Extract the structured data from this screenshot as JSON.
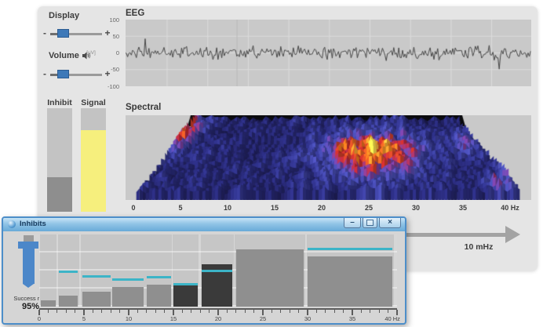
{
  "app": {
    "display": {
      "label": "Display",
      "minus": "-",
      "plus": "+",
      "handle_pos_pct": 18
    },
    "volume": {
      "label": "Volume",
      "minus": "-",
      "plus": "+",
      "handle_pos_pct": 18
    },
    "meters": {
      "inhibit_label": "Inhibit",
      "inhibit_fill_pct": 33,
      "signal_label": "Signal",
      "signal_fill_pct": 79
    },
    "eeg": {
      "title": "EEG",
      "unit": "[uV]"
    },
    "spectral": {
      "title": "Spectral"
    },
    "sweep": {
      "label": "10 mHz"
    }
  },
  "inhibits_window": {
    "title": "Inhibits",
    "minimize_glyph": "–",
    "close_glyph": "×",
    "success_label": "Success rate",
    "success_value": "95%"
  },
  "colors": {
    "threshold": "#3cb4c7",
    "bar": "#8f8f8f",
    "bar_active": "#3a3a3a",
    "signal_fill": "#f6ef7d",
    "inhibit_fill": "#8e8e8e",
    "slider_handle": "#3e79b8",
    "success_plunger": "#4c87c9",
    "window_chrome": "#4d8ec9"
  },
  "chart_data": [
    {
      "type": "bar",
      "title": "Inhibits",
      "xlabel": "Hz",
      "x_range": [
        0,
        40
      ],
      "x_major_ticks": [
        0,
        5,
        10,
        15,
        20,
        25,
        30,
        35,
        40
      ],
      "x_tick_labels": [
        "0",
        "5",
        "10",
        "15",
        "20",
        "25",
        "30",
        "35",
        "40 Hz"
      ],
      "minor_tick_step_hz": 1,
      "bars": [
        {
          "from_hz": 0.2,
          "to_hz": 1.8,
          "height_pct": 9,
          "threshold_pct": null,
          "state": "normal"
        },
        {
          "from_hz": 2.2,
          "to_hz": 4.3,
          "height_pct": 15,
          "threshold_pct": 48,
          "state": "normal"
        },
        {
          "from_hz": 4.8,
          "to_hz": 8.0,
          "height_pct": 21,
          "threshold_pct": 42,
          "state": "normal"
        },
        {
          "from_hz": 8.2,
          "to_hz": 11.7,
          "height_pct": 27,
          "threshold_pct": 38,
          "state": "normal"
        },
        {
          "from_hz": 12.0,
          "to_hz": 14.7,
          "height_pct": 30,
          "threshold_pct": 41,
          "state": "normal"
        },
        {
          "from_hz": 15.0,
          "to_hz": 17.7,
          "height_pct": 30,
          "threshold_pct": 31,
          "state": "active"
        },
        {
          "from_hz": 18.2,
          "to_hz": 21.6,
          "height_pct": 59,
          "threshold_pct": 49,
          "state": "active"
        },
        {
          "from_hz": 22.0,
          "to_hz": 29.6,
          "height_pct": 79,
          "threshold_pct": null,
          "state": "normal"
        },
        {
          "from_hz": 30.0,
          "to_hz": 39.5,
          "height_pct": 70,
          "threshold_pct": 80,
          "state": "normal"
        }
      ]
    },
    {
      "type": "line",
      "title": "EEG",
      "ylabel": "[uV]",
      "ylim": [
        -100,
        100
      ],
      "y_tick_labels": [
        "100",
        "50",
        "0",
        "-50",
        "-100"
      ],
      "grid": true,
      "description": "Continuous raw EEG noise trace oscillating around 0 uV, mostly within ±25 uV with occasional ±50 uV spikes; vertical cursor line near 28% of sweep."
    },
    {
      "type": "heatmap",
      "title": "Spectral",
      "xlabel": "Hz",
      "x_range": [
        0,
        40
      ],
      "x_tick_labels": [
        "0",
        "5",
        "10",
        "15",
        "20",
        "25",
        "30",
        "35",
        "40 Hz"
      ],
      "description": "3D spectral surface (waterfall) in perspective: mostly blue/indigo terrain, hot red-orange-yellow peak cluster around 20-27 Hz, a red ridge along the far-left edge (~3-7 Hz) and small red spots near 26-29 Hz at the front right."
    }
  ]
}
